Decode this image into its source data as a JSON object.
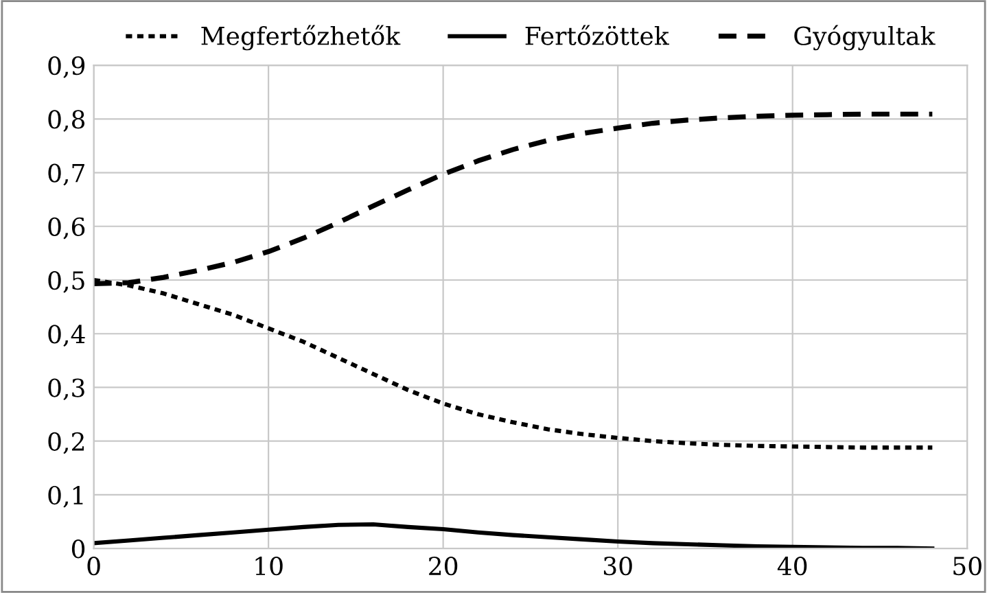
{
  "chart_data": {
    "type": "line",
    "x": [
      0,
      2,
      4,
      6,
      8,
      10,
      12,
      14,
      16,
      18,
      20,
      22,
      24,
      26,
      28,
      30,
      32,
      34,
      36,
      38,
      40,
      42,
      44,
      46,
      48
    ],
    "series": [
      {
        "name": "Megfertőzhetők",
        "color": "#000000",
        "line_style": "dotted",
        "values": [
          0.5,
          0.49,
          0.475,
          0.455,
          0.435,
          0.41,
          0.385,
          0.355,
          0.325,
          0.295,
          0.27,
          0.25,
          0.235,
          0.222,
          0.213,
          0.206,
          0.2,
          0.196,
          0.193,
          0.191,
          0.19,
          0.189,
          0.188,
          0.188,
          0.188
        ]
      },
      {
        "name": "Fertőzöttek",
        "color": "#000000",
        "line_style": "solid",
        "values": [
          0.01,
          0.015,
          0.02,
          0.025,
          0.03,
          0.035,
          0.04,
          0.044,
          0.045,
          0.04,
          0.036,
          0.03,
          0.025,
          0.021,
          0.017,
          0.013,
          0.01,
          0.008,
          0.006,
          0.004,
          0.003,
          0.002,
          0.001,
          0.001,
          0
        ]
      },
      {
        "name": "Gyógyultak",
        "color": "#000000",
        "line_style": "dashed",
        "values": [
          0.493,
          0.495,
          0.505,
          0.518,
          0.533,
          0.553,
          0.578,
          0.607,
          0.638,
          0.668,
          0.697,
          0.722,
          0.743,
          0.76,
          0.773,
          0.783,
          0.792,
          0.798,
          0.802,
          0.805,
          0.807,
          0.808,
          0.809,
          0.809,
          0.809
        ]
      }
    ],
    "xlim": [
      0,
      50
    ],
    "xticks": [
      0,
      10,
      20,
      30,
      40,
      50
    ],
    "ylim": [
      0,
      0.9
    ],
    "yticks": [
      {
        "value": 0,
        "label": "0"
      },
      {
        "value": 0.1,
        "label": "0,1"
      },
      {
        "value": 0.2,
        "label": "0,2"
      },
      {
        "value": 0.3,
        "label": "0,3"
      },
      {
        "value": 0.4,
        "label": "0,4"
      },
      {
        "value": 0.5,
        "label": "0,5"
      },
      {
        "value": 0.6,
        "label": "0,6"
      },
      {
        "value": 0.7,
        "label": "0,7"
      },
      {
        "value": 0.8,
        "label": "0,8"
      },
      {
        "value": 0.9,
        "label": "0,9"
      }
    ],
    "grid": true,
    "legend": "top",
    "marker": "none"
  }
}
